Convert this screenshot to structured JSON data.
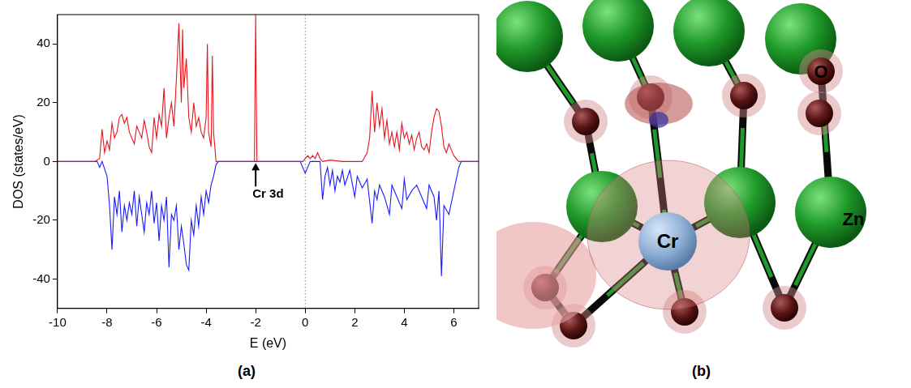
{
  "chart_data": {
    "type": "line",
    "panel_label": "(a)",
    "x_label": "E (eV)",
    "y_label": "DOS (states/eV)",
    "xlim": [
      -10,
      7
    ],
    "xticks": [
      -10,
      -8,
      -6,
      -4,
      -2,
      0,
      2,
      4,
      6
    ],
    "ylim": [
      -50,
      50
    ],
    "yticks": [
      -40,
      -20,
      0,
      20,
      40
    ],
    "grid": false,
    "reference_lines": [
      {
        "x": 0,
        "line_style": "dotted"
      }
    ],
    "annotations": [
      {
        "text": "Cr 3d",
        "x": -1.5,
        "y": -9,
        "arrow": {
          "x": -2,
          "from_y": -8.5,
          "to_y": -0.5
        }
      }
    ],
    "series": [
      {
        "color": "#e8141c",
        "x": [
          -10,
          -8.5,
          -8.3,
          -8.2,
          -8.1,
          -8.0,
          -7.9,
          -7.8,
          -7.7,
          -7.6,
          -7.5,
          -7.4,
          -7.3,
          -7.2,
          -7.1,
          -7.0,
          -6.9,
          -6.8,
          -6.7,
          -6.6,
          -6.5,
          -6.4,
          -6.3,
          -6.2,
          -6.1,
          -6.0,
          -5.9,
          -5.8,
          -5.7,
          -5.6,
          -5.5,
          -5.4,
          -5.3,
          -5.2,
          -5.1,
          -5.0,
          -4.95,
          -4.9,
          -4.8,
          -4.7,
          -4.6,
          -4.5,
          -4.4,
          -4.3,
          -4.2,
          -4.1,
          -4.0,
          -3.95,
          -3.9,
          -3.8,
          -3.75,
          -3.7,
          -3.6,
          -2.05,
          -2.0,
          -1.95,
          -0.1,
          0.1,
          0.2,
          0.3,
          0.4,
          0.5,
          0.6,
          0.7,
          1.0,
          1.5,
          2.3,
          2.5,
          2.6,
          2.7,
          2.8,
          2.9,
          3.0,
          3.1,
          3.2,
          3.3,
          3.4,
          3.5,
          3.6,
          3.7,
          3.8,
          3.9,
          4.0,
          4.1,
          4.2,
          4.3,
          4.4,
          4.5,
          4.6,
          4.7,
          4.8,
          4.9,
          5.0,
          5.1,
          5.2,
          5.3,
          5.4,
          5.5,
          5.6,
          5.7,
          5.8,
          5.9,
          6.0,
          6.2,
          7
        ],
        "values": [
          0,
          0,
          1,
          11,
          3,
          7,
          4,
          13,
          8,
          10,
          15,
          16,
          13,
          15,
          10,
          8,
          6,
          12,
          10,
          8,
          14,
          10,
          5,
          3,
          15,
          8,
          16,
          12,
          25,
          8,
          15,
          20,
          12,
          28,
          47,
          20,
          45,
          25,
          35,
          15,
          10,
          20,
          12,
          15,
          10,
          8,
          15,
          40,
          10,
          5,
          36,
          10,
          0,
          0,
          50,
          0,
          0,
          2,
          1,
          2,
          1,
          3,
          1,
          0,
          0.5,
          0,
          0,
          3,
          8,
          24,
          10,
          20,
          12,
          18,
          8,
          14,
          6,
          10,
          5,
          10,
          4,
          13,
          8,
          10,
          6,
          9,
          4,
          8,
          10,
          5,
          4,
          6,
          3,
          10,
          15,
          18,
          17,
          12,
          5,
          3,
          6,
          4,
          2,
          0,
          0
        ]
      },
      {
        "color": "#1a1aff",
        "x": [
          -10,
          -8.4,
          -8.3,
          -8.2,
          -8.0,
          -7.9,
          -7.8,
          -7.7,
          -7.6,
          -7.5,
          -7.4,
          -7.3,
          -7.2,
          -7.1,
          -7.0,
          -6.9,
          -6.8,
          -6.7,
          -6.6,
          -6.5,
          -6.4,
          -6.3,
          -6.2,
          -6.1,
          -6.0,
          -5.9,
          -5.8,
          -5.7,
          -5.6,
          -5.5,
          -5.4,
          -5.3,
          -5.2,
          -5.1,
          -5.0,
          -4.9,
          -4.8,
          -4.7,
          -4.6,
          -4.5,
          -4.4,
          -4.3,
          -4.2,
          -4.1,
          -4.0,
          -3.9,
          -3.8,
          -3.7,
          -3.6,
          -3.5,
          -0.2,
          0,
          0.2,
          0.6,
          0.7,
          0.8,
          0.9,
          1.0,
          1.1,
          1.2,
          1.3,
          1.4,
          1.5,
          1.6,
          1.8,
          2.0,
          2.1,
          2.3,
          2.5,
          2.7,
          2.8,
          2.9,
          3.0,
          3.2,
          3.4,
          3.5,
          3.7,
          3.9,
          4.0,
          4.1,
          4.3,
          4.5,
          4.7,
          4.9,
          5.0,
          5.2,
          5.3,
          5.4,
          5.5,
          5.6,
          5.8,
          6.0,
          6.1,
          6.2,
          6.3,
          7
        ],
        "values": [
          0,
          0,
          -2,
          0,
          -5,
          -15,
          -30,
          -12,
          -18,
          -10,
          -24,
          -15,
          -20,
          -14,
          -18,
          -10,
          -22,
          -12,
          -18,
          -24,
          -14,
          -18,
          -10,
          -21,
          -14,
          -27,
          -15,
          -20,
          -12,
          -36,
          -18,
          -20,
          -15,
          -30,
          -22,
          -28,
          -35,
          -37,
          -20,
          -25,
          -15,
          -22,
          -12,
          -18,
          -10,
          -14,
          -8,
          -5,
          -1,
          0,
          0,
          -4,
          0,
          0,
          -13,
          -5,
          -2,
          -8,
          -3,
          -10,
          -5,
          -7,
          -3,
          -8,
          -3,
          -12,
          -5,
          -9,
          -6,
          -21,
          -10,
          -13,
          -8,
          -12,
          -18,
          -8,
          -12,
          -16,
          -6,
          -13,
          -10,
          -8,
          -12,
          -16,
          -8,
          -12,
          -20,
          -10,
          -39,
          -15,
          -18,
          -10,
          -6,
          -2,
          0,
          0
        ]
      }
    ]
  },
  "diagram": {
    "panel_label": "(b)",
    "atoms": [
      {
        "label": "O"
      },
      {
        "label": "Zn"
      },
      {
        "label": "Cr"
      }
    ]
  }
}
